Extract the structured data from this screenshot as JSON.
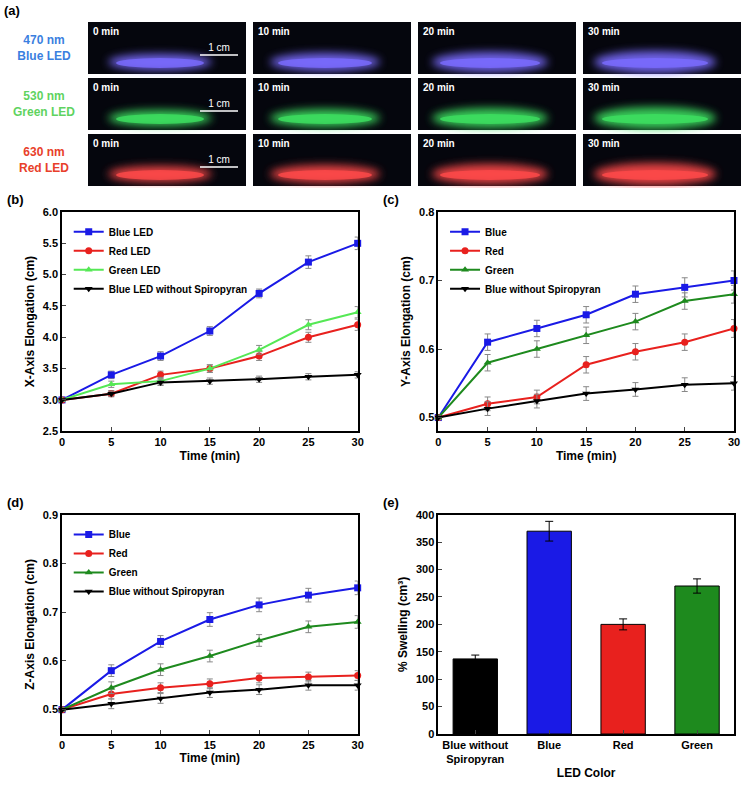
{
  "panel_a": {
    "label": "(a)",
    "scale_bar": "1 cm",
    "rows": [
      {
        "wavelength": "470 nm",
        "led": "Blue LED",
        "color": "#3b7fe0",
        "glow": "#7a6cff",
        "tiles": [
          "0 min",
          "10 min",
          "20 min",
          "30 min"
        ]
      },
      {
        "wavelength": "530 nm",
        "led": "Green LED",
        "color": "#5fd35f",
        "glow": "#3de060",
        "tiles": [
          "0 min",
          "10 min",
          "20 min",
          "30 min"
        ]
      },
      {
        "wavelength": "630 nm",
        "led": "Red LED",
        "color": "#e8402a",
        "glow": "#ff4a4a",
        "tiles": [
          "0 min",
          "10 min",
          "20 min",
          "30 min"
        ]
      }
    ]
  },
  "chart_data": [
    {
      "type": "line",
      "label": "(b)",
      "x_label": "Time (min)",
      "y_label": "X-Axis Elongation (cm)",
      "x": [
        0,
        5,
        10,
        15,
        20,
        25,
        30
      ],
      "xlim": [
        0,
        30
      ],
      "xticks": [
        0,
        5,
        10,
        15,
        20,
        25,
        30
      ],
      "ylim": [
        2.5,
        6.0
      ],
      "yticks": [
        {
          "value": 2.5,
          "label": "2.5"
        },
        {
          "value": 3,
          "label": "3.0"
        },
        {
          "value": 3.5,
          "label": "3.5"
        },
        {
          "value": 4,
          "label": "4.0"
        },
        {
          "value": 4.5,
          "label": "4.5"
        },
        {
          "value": 5,
          "label": "5.0"
        },
        {
          "value": 5.5,
          "label": "5.5"
        },
        {
          "value": 6,
          "label": "6.0"
        }
      ],
      "grid": false,
      "legend": "top left",
      "series": [
        {
          "name": "Blue LED",
          "color": "#1a1ae6",
          "marker": "square",
          "values": [
            3.0,
            3.4,
            3.7,
            4.1,
            4.7,
            5.2,
            5.5
          ],
          "error": [
            0.02,
            0.06,
            0.07,
            0.07,
            0.07,
            0.1,
            0.1
          ]
        },
        {
          "name": "Red LED",
          "color": "#e8211e",
          "marker": "circle",
          "values": [
            3.0,
            3.1,
            3.4,
            3.5,
            3.7,
            4.0,
            4.2
          ],
          "error": [
            0.02,
            0.05,
            0.06,
            0.06,
            0.07,
            0.08,
            0.09
          ]
        },
        {
          "name": "Green LED",
          "color": "#55e855",
          "marker": "triangle-up",
          "values": [
            3.0,
            3.25,
            3.3,
            3.5,
            3.8,
            4.2,
            4.4
          ],
          "error": [
            0.02,
            0.05,
            0.06,
            0.06,
            0.07,
            0.08,
            0.09
          ]
        },
        {
          "name": "Blue LED without Spiropyran",
          "color": "#000000",
          "marker": "triangle-down",
          "values": [
            3.0,
            3.1,
            3.28,
            3.3,
            3.33,
            3.37,
            3.4
          ],
          "error": [
            0.02,
            0.04,
            0.05,
            0.05,
            0.05,
            0.05,
            0.05
          ]
        }
      ]
    },
    {
      "type": "line",
      "label": "(c)",
      "x_label": "Time (min)",
      "y_label": "Y-Axis Elongation (cm)",
      "x": [
        0,
        5,
        10,
        15,
        20,
        25,
        30
      ],
      "xlim": [
        0,
        30
      ],
      "xticks": [
        0,
        5,
        10,
        15,
        20,
        25,
        30
      ],
      "ylim": [
        0.48,
        0.8
      ],
      "yticks": [
        0.5,
        0.6,
        0.7,
        0.8
      ],
      "grid": false,
      "legend": "top left",
      "series": [
        {
          "name": "Blue",
          "color": "#1a1ae6",
          "marker": "square",
          "values": [
            0.5,
            0.61,
            0.63,
            0.65,
            0.68,
            0.69,
            0.7
          ],
          "error": [
            0.003,
            0.012,
            0.012,
            0.012,
            0.012,
            0.014,
            0.014
          ]
        },
        {
          "name": "Red",
          "color": "#e8211e",
          "marker": "circle",
          "values": [
            0.5,
            0.52,
            0.53,
            0.577,
            0.596,
            0.61,
            0.63
          ],
          "error": [
            0.003,
            0.01,
            0.01,
            0.012,
            0.012,
            0.012,
            0.013
          ]
        },
        {
          "name": "Green",
          "color": "#1e8a1e",
          "marker": "triangle-up",
          "values": [
            0.5,
            0.58,
            0.6,
            0.62,
            0.64,
            0.67,
            0.68
          ],
          "error": [
            0.003,
            0.012,
            0.012,
            0.012,
            0.012,
            0.012,
            0.013
          ]
        },
        {
          "name": "Blue without Spiropyran",
          "color": "#000000",
          "marker": "triangle-down",
          "values": [
            0.5,
            0.513,
            0.524,
            0.535,
            0.541,
            0.548,
            0.55
          ],
          "error": [
            0.003,
            0.01,
            0.01,
            0.01,
            0.01,
            0.01,
            0.01
          ]
        }
      ]
    },
    {
      "type": "line",
      "label": "(d)",
      "x_label": "Time (min)",
      "y_label": "Z-Axis Elongation (cm)",
      "x": [
        0,
        5,
        10,
        15,
        20,
        25,
        30
      ],
      "xlim": [
        0,
        30
      ],
      "xticks": [
        0,
        5,
        10,
        15,
        20,
        25,
        30
      ],
      "ylim": [
        0.45,
        0.9
      ],
      "yticks": [
        0.5,
        0.6,
        0.7,
        0.8,
        0.9
      ],
      "grid": false,
      "legend": "top left",
      "series": [
        {
          "name": "Blue",
          "color": "#1a1ae6",
          "marker": "square",
          "values": [
            0.5,
            0.58,
            0.64,
            0.685,
            0.715,
            0.735,
            0.75
          ],
          "error": [
            0.003,
            0.012,
            0.012,
            0.014,
            0.014,
            0.014,
            0.014
          ]
        },
        {
          "name": "Red",
          "color": "#e8211e",
          "marker": "circle",
          "values": [
            0.5,
            0.532,
            0.545,
            0.553,
            0.565,
            0.567,
            0.57
          ],
          "error": [
            0.003,
            0.01,
            0.01,
            0.01,
            0.01,
            0.01,
            0.01
          ]
        },
        {
          "name": "Green",
          "color": "#1e8a1e",
          "marker": "triangle-up",
          "values": [
            0.5,
            0.545,
            0.582,
            0.61,
            0.642,
            0.67,
            0.68
          ],
          "error": [
            0.003,
            0.012,
            0.012,
            0.012,
            0.012,
            0.012,
            0.013
          ]
        },
        {
          "name": "Blue without Spiropyran",
          "color": "#000000",
          "marker": "triangle-down",
          "values": [
            0.5,
            0.512,
            0.523,
            0.535,
            0.541,
            0.55,
            0.55
          ],
          "error": [
            0.003,
            0.01,
            0.01,
            0.01,
            0.01,
            0.01,
            0.01
          ]
        }
      ]
    },
    {
      "type": "bar",
      "label": "(e)",
      "x_label": "LED Color",
      "y_label": "% Swelling (cm³)",
      "categories": [
        "Blue without Spiropyran",
        "Blue",
        "Red",
        "Green"
      ],
      "values": [
        137,
        370,
        200,
        270
      ],
      "error": [
        7,
        18,
        10,
        13
      ],
      "colors": [
        "#000000",
        "#1a1ae6",
        "#e8211e",
        "#1e8a1e"
      ],
      "ylim": [
        0,
        400
      ],
      "yticks": [
        0,
        50,
        100,
        150,
        200,
        250,
        300,
        350,
        400
      ],
      "grid": false
    }
  ]
}
